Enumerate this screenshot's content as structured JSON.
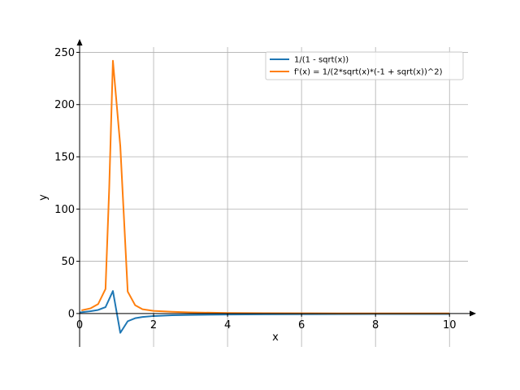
{
  "chart_data": {
    "type": "line",
    "xlabel": "x",
    "ylabel": "y",
    "xlim": [
      0,
      10.5
    ],
    "ylim": [
      -32,
      255
    ],
    "xticks": [
      0,
      2,
      4,
      6,
      8,
      10
    ],
    "yticks": [
      0,
      50,
      100,
      150,
      200,
      250
    ],
    "xtick_labels": [
      "0",
      "2",
      "4",
      "6",
      "8",
      "10"
    ],
    "ytick_labels": [
      "0",
      "50",
      "100",
      "150",
      "200",
      "250"
    ],
    "grid": true,
    "legend_position": "upper right",
    "series": [
      {
        "name": "1/(1 - sqrt(x))",
        "color": "#1f77b4",
        "x": [
          0,
          0.3,
          0.5,
          0.7,
          0.9,
          1.1,
          1.3,
          1.5,
          1.7,
          2.0,
          2.5,
          3,
          4,
          5,
          6,
          7,
          8,
          9,
          10
        ],
        "y": [
          1.0,
          2.2,
          3.4,
          6.1,
          21.5,
          -18.5,
          -7.4,
          -4.5,
          -3.3,
          -2.4,
          -1.7,
          -1.37,
          -1.0,
          -0.81,
          -0.69,
          -0.61,
          -0.55,
          -0.5,
          -0.46
        ]
      },
      {
        "name": "f'(x) = 1/(2*sqrt(x)*(-1 + sqrt(x))^2)",
        "color": "#ff7f0e",
        "x": [
          0.05,
          0.3,
          0.5,
          0.7,
          0.8,
          0.9,
          1.1,
          1.3,
          1.5,
          1.7,
          2.0,
          2.5,
          3,
          4,
          5,
          6,
          7,
          8,
          9,
          10
        ],
        "y": [
          3.0,
          5.0,
          9.0,
          23.5,
          120,
          242,
          160,
          21,
          8.0,
          4.1,
          2.5,
          1.6,
          1.05,
          0.5,
          0.3,
          0.2,
          0.13,
          0.1,
          0.07,
          0.05
        ]
      }
    ]
  }
}
